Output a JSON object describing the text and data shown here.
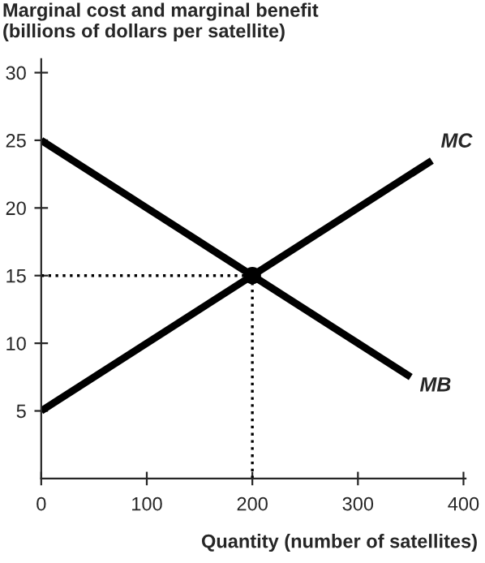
{
  "chart_data": {
    "type": "line",
    "ylabel": "Marginal cost and marginal benefit\n(billions of dollars per satellite)",
    "xlabel": "Quantity (number of satellites)",
    "series": [
      {
        "name": "MC",
        "color": "#000000",
        "x": [
          0,
          370
        ],
        "values": [
          5,
          23.5
        ]
      },
      {
        "name": "MB",
        "color": "#000000",
        "x": [
          0,
          350
        ],
        "values": [
          25,
          7.5
        ]
      },
      {
        "type": "scatter",
        "marker": "circle",
        "color": "#000000",
        "x": [
          200
        ],
        "values": [
          15
        ]
      }
    ],
    "ref_lines": [
      {
        "axis": "y",
        "value": 15,
        "line_style": "dotted",
        "color": "#000000"
      },
      {
        "axis": "x",
        "value": 200,
        "line_style": "dotted",
        "color": "#000000"
      }
    ],
    "xlim": [
      0,
      402
    ],
    "ylim": [
      0,
      31
    ],
    "xticks": [
      0,
      100,
      200,
      300,
      400
    ],
    "yticks": [
      5,
      10,
      15,
      20,
      25,
      30
    ],
    "grid": false,
    "legend": false
  }
}
